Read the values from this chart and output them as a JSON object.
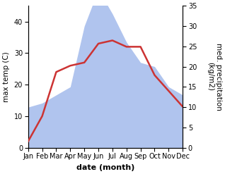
{
  "months": [
    "Jan",
    "Feb",
    "Mar",
    "Apr",
    "May",
    "Jun",
    "Jul",
    "Aug",
    "Sep",
    "Oct",
    "Nov",
    "Dec"
  ],
  "month_indices": [
    0,
    1,
    2,
    3,
    4,
    5,
    6,
    7,
    8,
    9,
    10,
    11
  ],
  "temperature": [
    2,
    10,
    24,
    26,
    27,
    33,
    34,
    32,
    32,
    23,
    18,
    13
  ],
  "precipitation": [
    10,
    11,
    13,
    15,
    30,
    39,
    33,
    26,
    21,
    20,
    15,
    13
  ],
  "temp_ylim": [
    0,
    45
  ],
  "temp_yticks": [
    0,
    10,
    20,
    30,
    40
  ],
  "precip_ylim": [
    0,
    35
  ],
  "precip_yticks": [
    0,
    5,
    10,
    15,
    20,
    25,
    30,
    35
  ],
  "temp_color": "#cc3333",
  "precip_color_fill": "#b0c4ee",
  "xlabel": "date (month)",
  "ylabel_left": "max temp (C)",
  "ylabel_right": "med. precipitation\n(kg/m2)",
  "temp_linewidth": 1.8,
  "xlabel_fontsize": 8,
  "ylabel_fontsize": 7.5,
  "tick_fontsize": 7
}
